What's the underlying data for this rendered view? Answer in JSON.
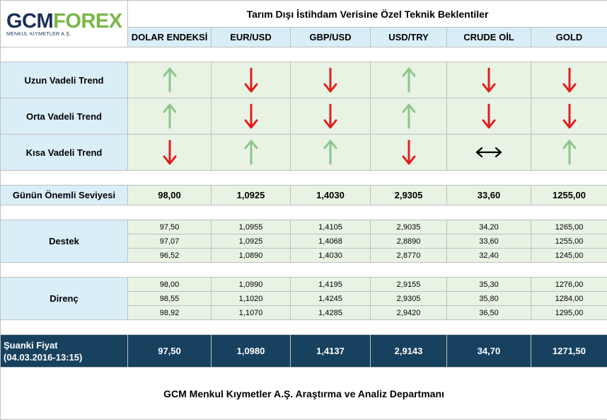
{
  "logo": {
    "text_gcm": "GCM",
    "text_forex": "FOREX",
    "subtitle": "MENKUL KIYMETLER A.Ş."
  },
  "title": "Tarım Dışı İstihdam Verisine Özel Teknik Beklentiler",
  "columns": [
    "DOLAR ENDEKSİ",
    "EUR/USD",
    "GBP/USD",
    "USD/TRY",
    "CRUDE OİL",
    "GOLD"
  ],
  "trends": [
    {
      "label": "Uzun Vadeli Trend",
      "arrows": [
        "up",
        "down",
        "down",
        "up",
        "down",
        "down"
      ]
    },
    {
      "label": "Orta Vadeli Trend",
      "arrows": [
        "up",
        "down",
        "down",
        "up",
        "down",
        "down"
      ]
    },
    {
      "label": "Kısa Vadeli Trend",
      "arrows": [
        "down",
        "up",
        "up",
        "down",
        "sideways",
        "up"
      ]
    }
  ],
  "key_level": {
    "label": "Günün Önemli Seviyesi",
    "values": [
      "98,00",
      "1,0925",
      "1,4030",
      "2,9305",
      "33,60",
      "1255,00"
    ]
  },
  "support": {
    "label": "Destek",
    "rows": [
      [
        "97,50",
        "1,0955",
        "1,4105",
        "2,9035",
        "34,20",
        "1265,00"
      ],
      [
        "97,07",
        "1,0925",
        "1,4068",
        "2,8890",
        "33,60",
        "1255,00"
      ],
      [
        "96,52",
        "1,0890",
        "1,4030",
        "2,8770",
        "32,40",
        "1245,00"
      ]
    ]
  },
  "resistance": {
    "label": "Direnç",
    "rows": [
      [
        "98,00",
        "1,0990",
        "1,4195",
        "2,9155",
        "35,30",
        "1276,00"
      ],
      [
        "98,55",
        "1,1020",
        "1,4245",
        "2,9305",
        "35,80",
        "1284,00"
      ],
      [
        "98,92",
        "1,1070",
        "1,4285",
        "2,9420",
        "36,50",
        "1295,00"
      ]
    ]
  },
  "current_price": {
    "label": "Şuanki Fiyat",
    "timestamp": "(04.03.2016-13:15)",
    "values": [
      "97,50",
      "1,0980",
      "1,4137",
      "2,9143",
      "34,70",
      "1271,50"
    ]
  },
  "footer": "GCM Menkul Kıymetler A.Ş. Araştırma ve Analiz Departmanı",
  "colors": {
    "up": "#8cc58c",
    "down": "#e41c1c",
    "sideways": "#000000",
    "header_bg": "#daeef8",
    "trend_bg": "#e8f3e4",
    "price_bg": "#17415f"
  }
}
